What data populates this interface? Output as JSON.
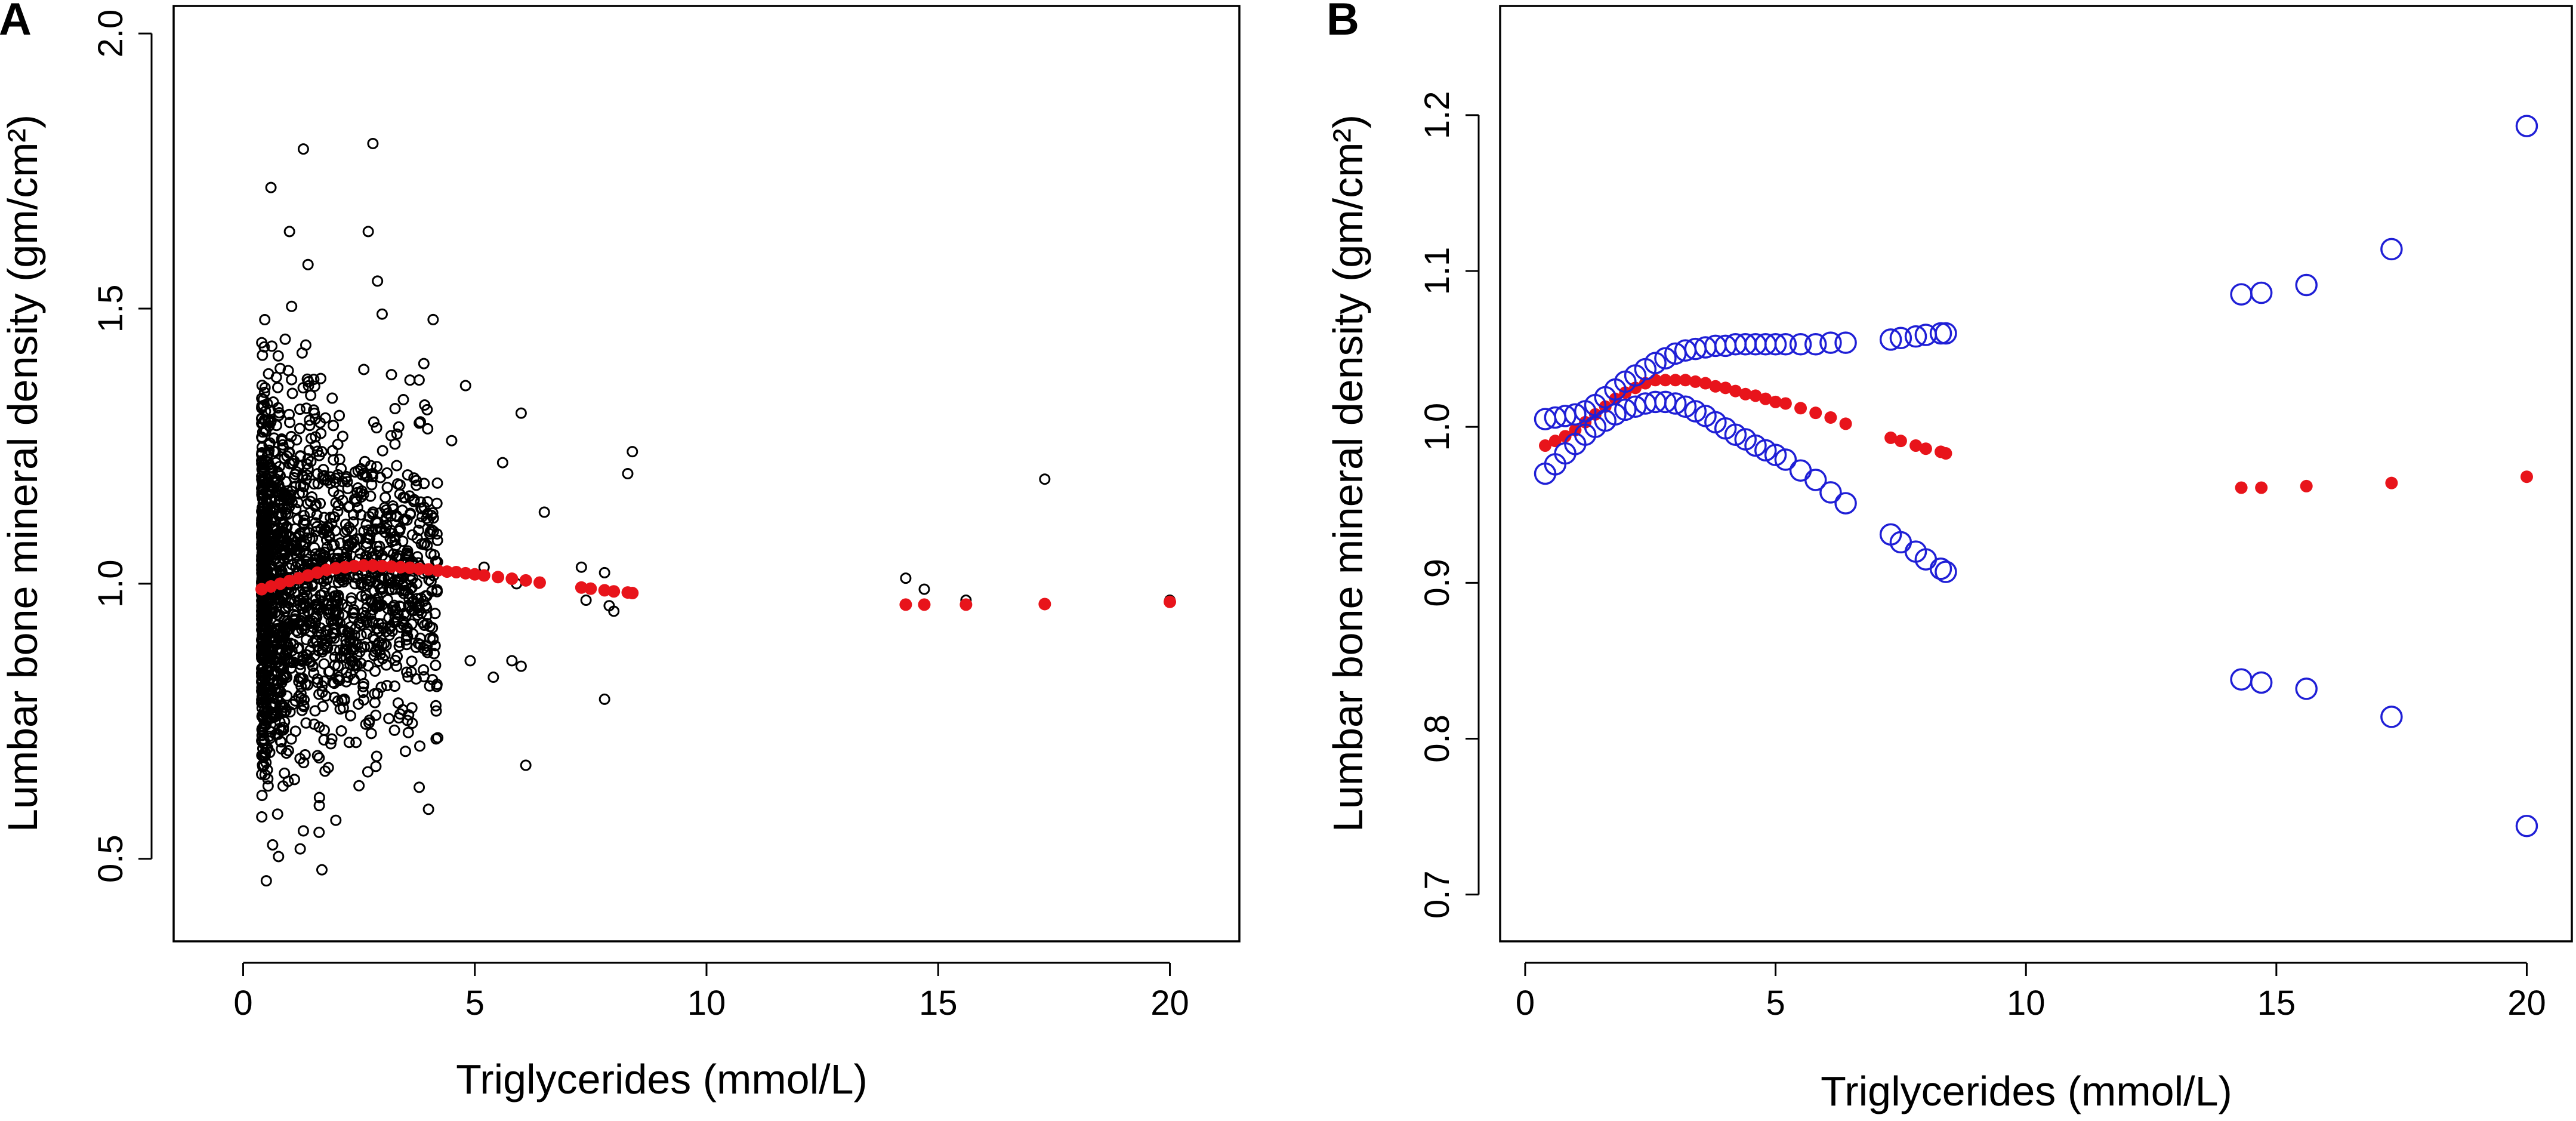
{
  "chart_data": [
    {
      "type": "scatter",
      "panel": "A",
      "xlabel": "Triglycerides (mmol/L)",
      "ylabel": "Lumbar bone mineral density (gm/cm²)",
      "xlim": [
        -1.5,
        21.5
      ],
      "ylim": [
        0.35,
        2.05
      ],
      "xticks": [
        "0",
        "5",
        "10",
        "15",
        "20"
      ],
      "yticks": [
        "0.5",
        "1.0",
        "1.5",
        "2.0"
      ],
      "series": [
        {
          "name": "observed",
          "marker": "open-circle",
          "color": "#000000",
          "points": [
            [
              0.5,
              0.46
            ],
            [
              0.6,
              1.72
            ],
            [
              1.0,
              1.64
            ],
            [
              1.3,
              1.79
            ],
            [
              1.4,
              1.58
            ],
            [
              1.7,
              0.48
            ],
            [
              2.0,
              0.57
            ],
            [
              2.7,
              1.64
            ],
            [
              2.8,
              1.8
            ],
            [
              2.9,
              1.55
            ],
            [
              3.0,
              1.49
            ],
            [
              3.2,
              1.38
            ],
            [
              3.6,
              1.37
            ],
            [
              3.9,
              1.4
            ],
            [
              4.1,
              1.48
            ],
            [
              3.8,
              0.63
            ],
            [
              4.0,
              0.59
            ],
            [
              4.2,
              0.72
            ],
            [
              4.5,
              1.26
            ],
            [
              4.8,
              1.36
            ],
            [
              4.9,
              0.86
            ],
            [
              5.2,
              1.03
            ],
            [
              5.4,
              0.83
            ],
            [
              5.6,
              1.22
            ],
            [
              5.8,
              0.86
            ],
            [
              5.9,
              1.0
            ],
            [
              6.0,
              1.31
            ],
            [
              6.0,
              0.85
            ],
            [
              6.1,
              0.67
            ],
            [
              6.5,
              1.13
            ],
            [
              7.3,
              1.03
            ],
            [
              7.4,
              0.97
            ],
            [
              7.8,
              1.02
            ],
            [
              7.8,
              0.79
            ],
            [
              7.9,
              0.96
            ],
            [
              8.0,
              0.95
            ],
            [
              8.3,
              1.2
            ],
            [
              8.4,
              1.24
            ],
            [
              14.3,
              1.01
            ],
            [
              14.7,
              0.99
            ],
            [
              15.6,
              0.97
            ],
            [
              17.3,
              1.19
            ],
            [
              20.0,
              0.97
            ]
          ],
          "cloud": {
            "x_range": [
              0.4,
              4.2
            ],
            "y_center": 1.0,
            "n_points": 1700
          }
        },
        {
          "name": "smooth fit",
          "marker": "filled-circle",
          "color": "#e8141b",
          "points": [
            [
              0.4,
              0.99
            ],
            [
              0.6,
              0.995
            ],
            [
              0.8,
              1.0
            ],
            [
              1.0,
              1.005
            ],
            [
              1.2,
              1.01
            ],
            [
              1.4,
              1.015
            ],
            [
              1.6,
              1.02
            ],
            [
              1.8,
              1.025
            ],
            [
              2.0,
              1.028
            ],
            [
              2.2,
              1.03
            ],
            [
              2.4,
              1.032
            ],
            [
              2.6,
              1.033
            ],
            [
              2.8,
              1.033
            ],
            [
              3.0,
              1.032
            ],
            [
              3.2,
              1.031
            ],
            [
              3.4,
              1.03
            ],
            [
              3.6,
              1.029
            ],
            [
              3.8,
              1.027
            ],
            [
              4.0,
              1.026
            ],
            [
              4.2,
              1.024
            ],
            [
              4.4,
              1.022
            ],
            [
              4.6,
              1.021
            ],
            [
              4.8,
              1.019
            ],
            [
              5.0,
              1.017
            ],
            [
              5.2,
              1.015
            ],
            [
              5.5,
              1.012
            ],
            [
              5.8,
              1.009
            ],
            [
              6.1,
              1.006
            ],
            [
              6.4,
              1.002
            ],
            [
              7.3,
              0.993
            ],
            [
              7.5,
              0.991
            ],
            [
              7.8,
              0.988
            ],
            [
              8.0,
              0.986
            ],
            [
              8.3,
              0.984
            ],
            [
              8.4,
              0.983
            ],
            [
              14.3,
              0.962
            ],
            [
              14.7,
              0.962
            ],
            [
              15.6,
              0.962
            ],
            [
              17.3,
              0.963
            ],
            [
              20.0,
              0.967
            ]
          ]
        }
      ]
    },
    {
      "type": "scatter",
      "panel": "B",
      "xlabel": "Triglycerides (mmol/L)",
      "ylabel": "Lumbar bone mineral density (gm/cm²)",
      "xlim": [
        -0.5,
        20.9
      ],
      "ylim": [
        0.67,
        1.27
      ],
      "xticks": [
        "0",
        "5",
        "10",
        "15",
        "20"
      ],
      "yticks": [
        "0.7",
        "0.8",
        "0.9",
        "1.0",
        "1.1",
        "1.2"
      ],
      "series": [
        {
          "name": "fit",
          "marker": "filled-circle",
          "color": "#e8141b",
          "points": [
            [
              0.4,
              0.988
            ],
            [
              0.6,
              0.991
            ],
            [
              0.8,
              0.994
            ],
            [
              1.0,
              0.998
            ],
            [
              1.2,
              1.003
            ],
            [
              1.4,
              1.008
            ],
            [
              1.6,
              1.013
            ],
            [
              1.8,
              1.018
            ],
            [
              2.0,
              1.022
            ],
            [
              2.2,
              1.025
            ],
            [
              2.4,
              1.028
            ],
            [
              2.6,
              1.03
            ],
            [
              2.8,
              1.03
            ],
            [
              3.0,
              1.03
            ],
            [
              3.2,
              1.03
            ],
            [
              3.4,
              1.029
            ],
            [
              3.6,
              1.028
            ],
            [
              3.8,
              1.026
            ],
            [
              4.0,
              1.025
            ],
            [
              4.2,
              1.023
            ],
            [
              4.4,
              1.021
            ],
            [
              4.6,
              1.02
            ],
            [
              4.8,
              1.018
            ],
            [
              5.0,
              1.016
            ],
            [
              5.2,
              1.015
            ],
            [
              5.5,
              1.012
            ],
            [
              5.8,
              1.009
            ],
            [
              6.1,
              1.006
            ],
            [
              6.4,
              1.002
            ],
            [
              7.3,
              0.993
            ],
            [
              7.5,
              0.991
            ],
            [
              7.8,
              0.988
            ],
            [
              8.0,
              0.986
            ],
            [
              8.3,
              0.984
            ],
            [
              8.4,
              0.983
            ],
            [
              14.3,
              0.961
            ],
            [
              14.7,
              0.961
            ],
            [
              15.6,
              0.962
            ],
            [
              17.3,
              0.964
            ],
            [
              20.0,
              0.968
            ]
          ]
        },
        {
          "name": "upper 95% CI",
          "marker": "open-circle",
          "color": "#1f1fd6",
          "points": [
            [
              0.4,
              1.005
            ],
            [
              0.6,
              1.006
            ],
            [
              0.8,
              1.007
            ],
            [
              1.0,
              1.008
            ],
            [
              1.2,
              1.01
            ],
            [
              1.4,
              1.014
            ],
            [
              1.6,
              1.019
            ],
            [
              1.8,
              1.024
            ],
            [
              2.0,
              1.029
            ],
            [
              2.2,
              1.033
            ],
            [
              2.4,
              1.037
            ],
            [
              2.6,
              1.041
            ],
            [
              2.8,
              1.044
            ],
            [
              3.0,
              1.047
            ],
            [
              3.2,
              1.049
            ],
            [
              3.4,
              1.05
            ],
            [
              3.6,
              1.051
            ],
            [
              3.8,
              1.052
            ],
            [
              4.0,
              1.052
            ],
            [
              4.2,
              1.053
            ],
            [
              4.4,
              1.053
            ],
            [
              4.6,
              1.053
            ],
            [
              4.8,
              1.053
            ],
            [
              5.0,
              1.053
            ],
            [
              5.2,
              1.053
            ],
            [
              5.5,
              1.053
            ],
            [
              5.8,
              1.053
            ],
            [
              6.1,
              1.054
            ],
            [
              6.4,
              1.054
            ],
            [
              7.3,
              1.056
            ],
            [
              7.5,
              1.057
            ],
            [
              7.8,
              1.058
            ],
            [
              8.0,
              1.059
            ],
            [
              8.3,
              1.06
            ],
            [
              8.4,
              1.06
            ],
            [
              14.3,
              1.085
            ],
            [
              14.7,
              1.086
            ],
            [
              15.6,
              1.091
            ],
            [
              17.3,
              1.114
            ],
            [
              20.0,
              1.193
            ]
          ]
        },
        {
          "name": "lower 95% CI",
          "marker": "open-circle",
          "color": "#1f1fd6",
          "points": [
            [
              0.4,
              0.97
            ],
            [
              0.6,
              0.976
            ],
            [
              0.8,
              0.983
            ],
            [
              1.0,
              0.989
            ],
            [
              1.2,
              0.995
            ],
            [
              1.4,
              1.0
            ],
            [
              1.6,
              1.004
            ],
            [
              1.8,
              1.008
            ],
            [
              2.0,
              1.011
            ],
            [
              2.2,
              1.013
            ],
            [
              2.4,
              1.015
            ],
            [
              2.6,
              1.016
            ],
            [
              2.8,
              1.016
            ],
            [
              3.0,
              1.015
            ],
            [
              3.2,
              1.013
            ],
            [
              3.4,
              1.01
            ],
            [
              3.6,
              1.007
            ],
            [
              3.8,
              1.003
            ],
            [
              4.0,
              0.999
            ],
            [
              4.2,
              0.995
            ],
            [
              4.4,
              0.992
            ],
            [
              4.6,
              0.988
            ],
            [
              4.8,
              0.985
            ],
            [
              5.0,
              0.982
            ],
            [
              5.2,
              0.979
            ],
            [
              5.5,
              0.972
            ],
            [
              5.8,
              0.966
            ],
            [
              6.1,
              0.958
            ],
            [
              6.4,
              0.951
            ],
            [
              7.3,
              0.931
            ],
            [
              7.5,
              0.926
            ],
            [
              7.8,
              0.92
            ],
            [
              8.0,
              0.915
            ],
            [
              8.3,
              0.909
            ],
            [
              8.4,
              0.907
            ],
            [
              14.3,
              0.838
            ],
            [
              14.7,
              0.836
            ],
            [
              15.6,
              0.832
            ],
            [
              17.3,
              0.814
            ],
            [
              20.0,
              0.744
            ]
          ]
        }
      ]
    }
  ]
}
